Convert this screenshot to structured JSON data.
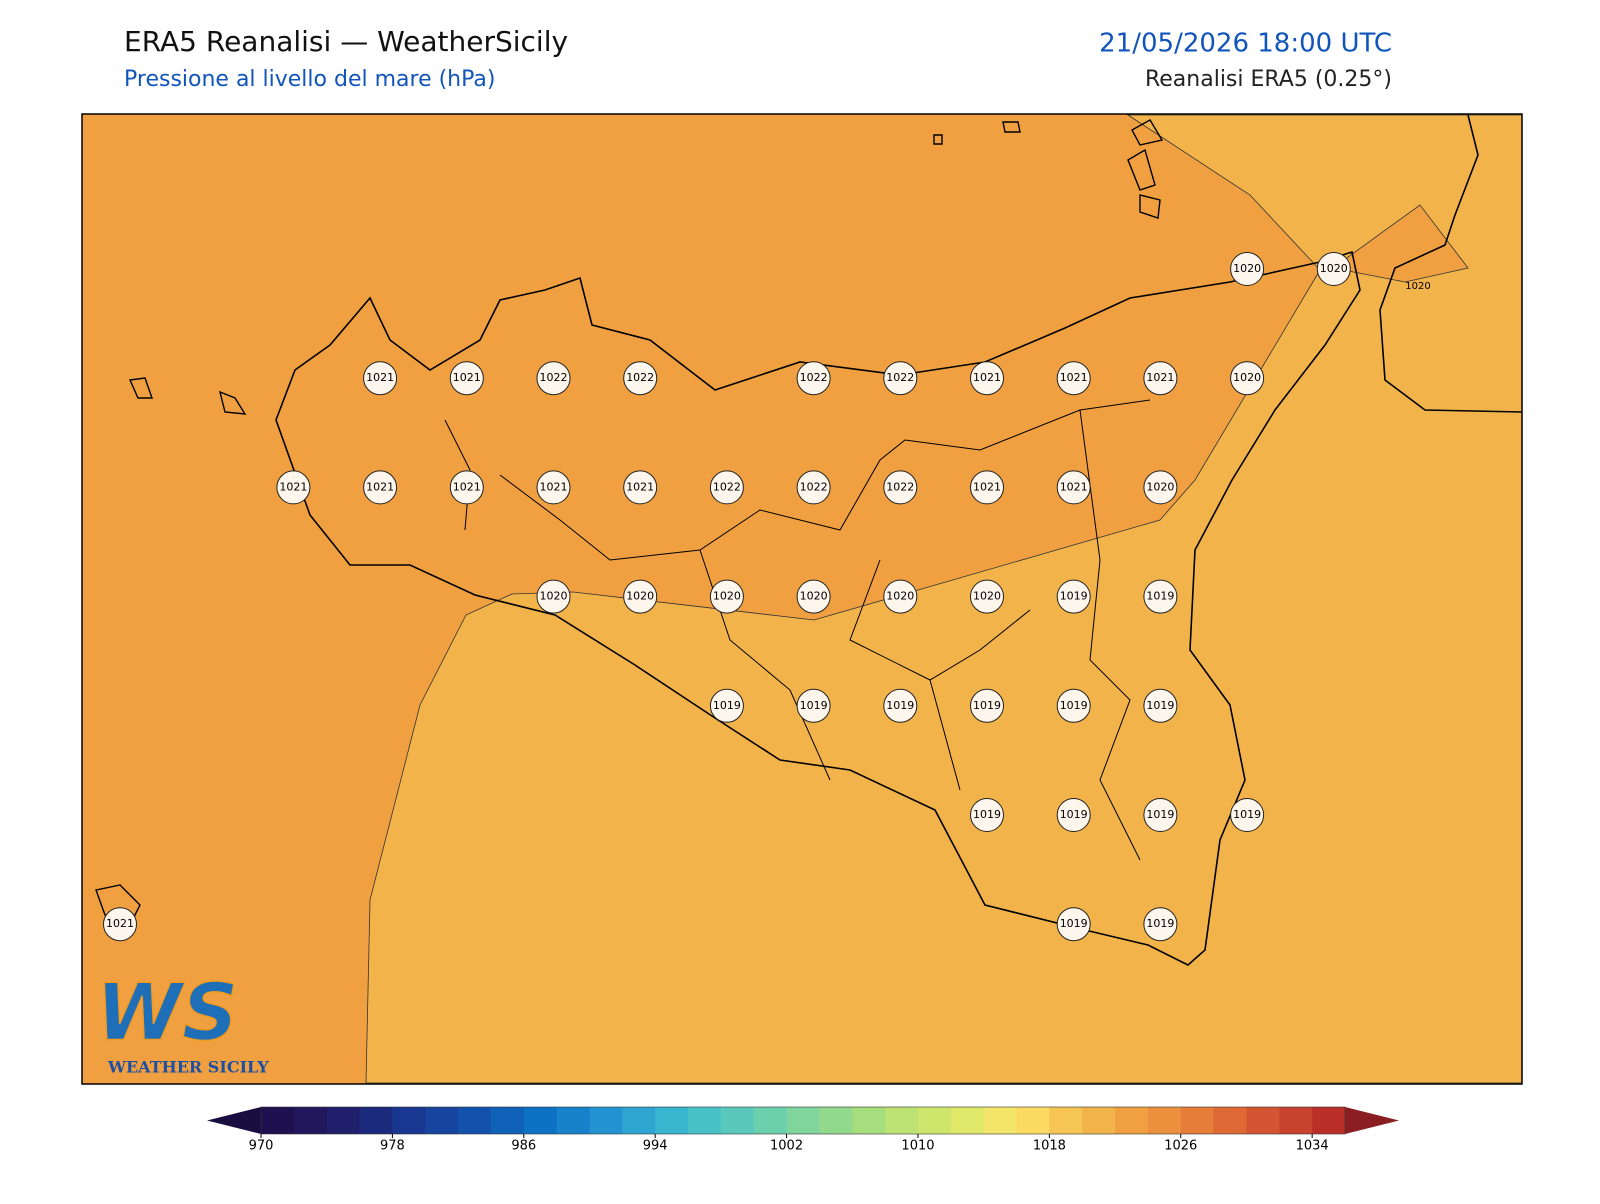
{
  "header": {
    "title": "ERA5 Reanalisi — WeatherSicily",
    "subtitle": "Pressione al livello del mare (hPa)",
    "date": "21/05/2026 18:00 UTC",
    "source": "Reanalisi ERA5 (0.25°)"
  },
  "map": {
    "grid_values": [
      [
        null,
        null,
        null,
        null,
        null,
        null,
        null,
        null,
        null,
        null,
        null,
        null,
        null,
        1020,
        1020
      ],
      [
        null,
        null,
        null,
        1021,
        1021,
        1022,
        1022,
        null,
        1022,
        1022,
        1021,
        1021,
        1021,
        1020,
        null
      ],
      [
        null,
        null,
        1021,
        1021,
        1021,
        1021,
        1021,
        1022,
        1022,
        1022,
        1021,
        1021,
        1020,
        null,
        null
      ],
      [
        null,
        null,
        null,
        null,
        null,
        1020,
        1020,
        1020,
        1020,
        1020,
        1020,
        1019,
        1019,
        null,
        null
      ],
      [
        null,
        null,
        null,
        null,
        null,
        null,
        null,
        1019,
        1019,
        1019,
        1019,
        1019,
        1019,
        null,
        null
      ],
      [
        null,
        null,
        null,
        null,
        null,
        null,
        null,
        null,
        null,
        null,
        1019,
        1019,
        1019,
        1019,
        null
      ],
      [
        1021,
        null,
        null,
        null,
        null,
        null,
        null,
        null,
        null,
        null,
        null,
        1019,
        1019,
        null,
        null
      ]
    ],
    "contour_label": 1020
  },
  "logo": {
    "mark": "WS",
    "text": "WEATHER SICILY"
  },
  "colorbar": {
    "lim": [
      970,
      1036
    ],
    "ticks": [
      970,
      978,
      986,
      994,
      1002,
      1010,
      1018,
      1026,
      1034
    ],
    "colors": [
      "#1f1150",
      "#22175c",
      "#1f1f6b",
      "#1c2a7d",
      "#193690",
      "#16449e",
      "#1252ac",
      "#0f62b8",
      "#0d72c3",
      "#1582cb",
      "#2293d0",
      "#2ea5d1",
      "#38b6cf",
      "#48c2c6",
      "#5ac9bb",
      "#6dd0ac",
      "#80d59c",
      "#93d98d",
      "#a7de7d",
      "#bbe272",
      "#cee66c",
      "#e0e86a",
      "#f2e56a",
      "#fcda62",
      "#f6c554",
      "#f3b34b",
      "#f0a041",
      "#ec903d",
      "#e67d38",
      "#de6934",
      "#d45531",
      "#c8422d",
      "#ba3029"
    ],
    "under_color": "#1a0d40",
    "over_color": "#8b1e22"
  }
}
